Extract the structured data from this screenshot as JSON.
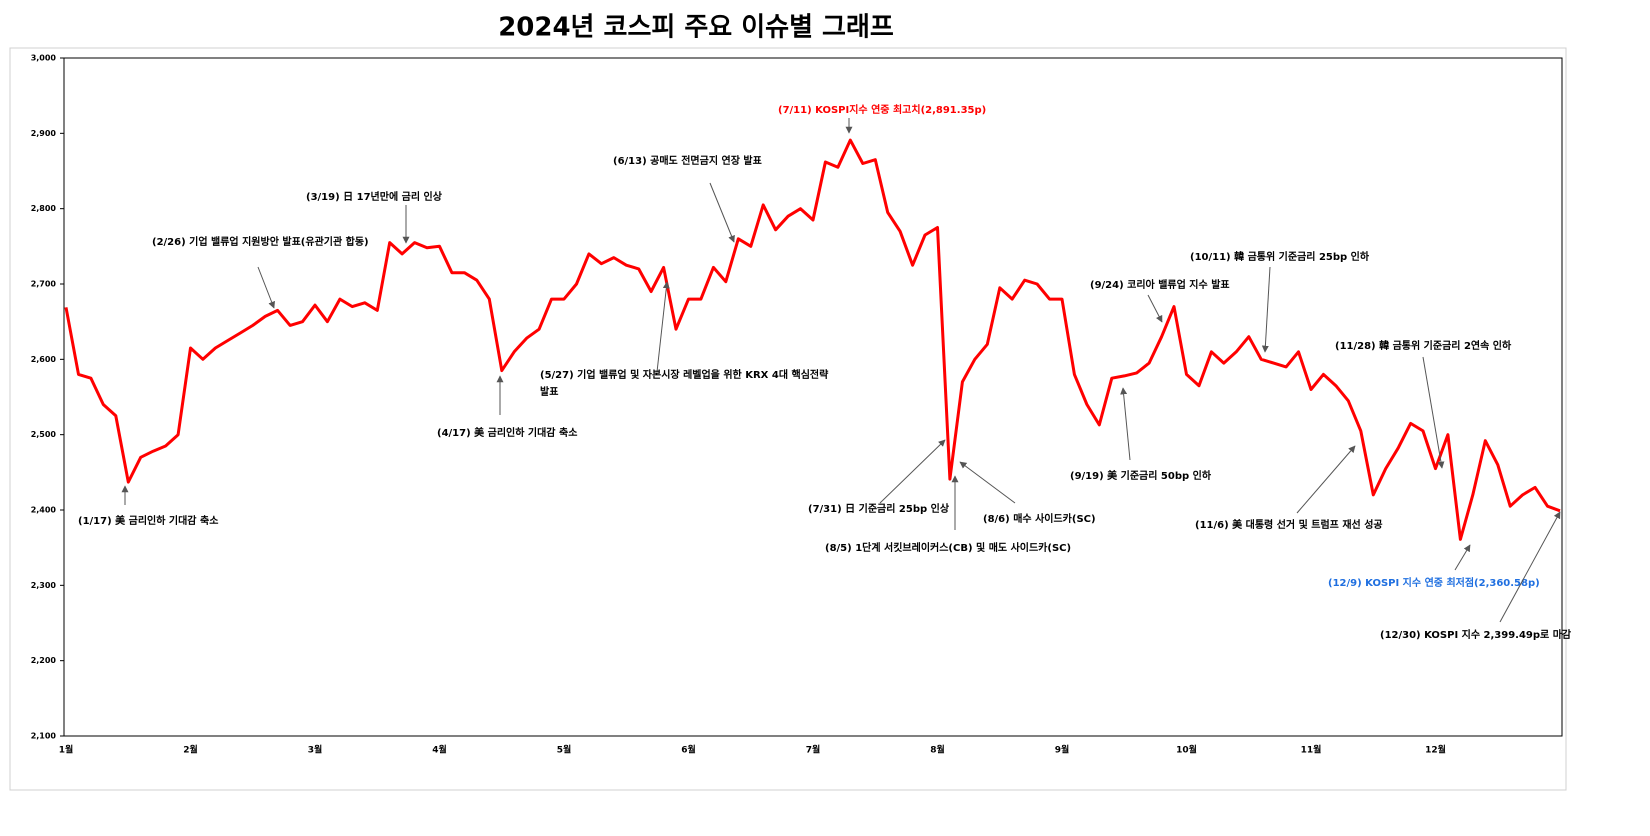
{
  "chart_data": {
    "type": "line",
    "title": "2024년  코스피 주요 이슈별 그래프",
    "categories": [
      "1월",
      null,
      null,
      null,
      null,
      null,
      null,
      null,
      null,
      null,
      "2월",
      null,
      null,
      null,
      null,
      null,
      null,
      null,
      null,
      null,
      "3월",
      null,
      null,
      null,
      null,
      null,
      null,
      null,
      null,
      null,
      "4월",
      null,
      null,
      null,
      null,
      null,
      null,
      null,
      null,
      null,
      "5월",
      null,
      null,
      null,
      null,
      null,
      null,
      null,
      null,
      null,
      "6월",
      null,
      null,
      null,
      null,
      null,
      null,
      null,
      null,
      null,
      "7월",
      null,
      null,
      null,
      null,
      null,
      null,
      null,
      null,
      null,
      "8월",
      null,
      null,
      null,
      null,
      null,
      null,
      null,
      null,
      null,
      "9월",
      null,
      null,
      null,
      null,
      null,
      null,
      null,
      null,
      null,
      "10월",
      null,
      null,
      null,
      null,
      null,
      null,
      null,
      null,
      null,
      "11월",
      null,
      null,
      null,
      null,
      null,
      null,
      null,
      null,
      null,
      "12월",
      null,
      null,
      null,
      null,
      null,
      null,
      null,
      null,
      null,
      null
    ],
    "series": [
      {
        "name": "KOSPI",
        "color": "#ff0000",
        "values": [
          2669,
          2580,
          2575,
          2540,
          2525,
          2437,
          2470,
          2478,
          2485,
          2500,
          2615,
          2600,
          2615,
          2625,
          2635,
          2645,
          2657,
          2665,
          2645,
          2650,
          2672,
          2650,
          2680,
          2670,
          2675,
          2665,
          2755,
          2740,
          2755,
          2748,
          2750,
          2715,
          2715,
          2705,
          2680,
          2585,
          2610,
          2628,
          2640,
          2680,
          2680,
          2700,
          2740,
          2727,
          2735,
          2725,
          2720,
          2690,
          2722,
          2640,
          2680,
          2680,
          2722,
          2703,
          2760,
          2750,
          2805,
          2772,
          2790,
          2800,
          2785,
          2862,
          2855,
          2891,
          2860,
          2865,
          2795,
          2770,
          2725,
          2765,
          2775,
          2441,
          2570,
          2600,
          2620,
          2695,
          2680,
          2705,
          2700,
          2680,
          2680,
          2580,
          2540,
          2513,
          2575,
          2578,
          2582,
          2595,
          2630,
          2670,
          2580,
          2565,
          2610,
          2595,
          2610,
          2630,
          2600,
          2595,
          2590,
          2610,
          2560,
          2580,
          2565,
          2545,
          2505,
          2420,
          2455,
          2482,
          2515,
          2505,
          2455,
          2500,
          2361,
          2420,
          2492,
          2460,
          2405,
          2420,
          2430,
          2405,
          2399
        ]
      }
    ],
    "ylim": [
      2100,
      3000
    ],
    "yticks": [
      {
        "value": 2100,
        "label": "2,100"
      },
      {
        "value": 2200,
        "label": "2,200"
      },
      {
        "value": 2300,
        "label": "2,300"
      },
      {
        "value": 2400,
        "label": "2,400"
      },
      {
        "value": 2500,
        "label": "2,500"
      },
      {
        "value": 2600,
        "label": "2,600"
      },
      {
        "value": 2700,
        "label": "2,700"
      },
      {
        "value": 2800,
        "label": "2,800"
      },
      {
        "value": 2900,
        "label": "2,900"
      },
      {
        "value": 3000,
        "label": "3,000"
      }
    ],
    "grid": false,
    "annotations": [
      {
        "text": [
          "(1/17) 美 금리인하 기대감 축소"
        ],
        "color": "#000000"
      },
      {
        "text": [
          "(2/26) 기업 밸류업 지원방안 발표(유관기관 합동)"
        ],
        "color": "#000000"
      },
      {
        "text": [
          "(3/19) 日 17년만에 금리 인상"
        ],
        "color": "#000000"
      },
      {
        "text": [
          "(4/17) 美 금리인하 기대감 축소"
        ],
        "color": "#000000"
      },
      {
        "text": [
          "(5/27) 기업 밸류업 및 자본시장 레벨업을 위한  KRX 4대 핵심전략",
          "발표"
        ],
        "color": "#000000"
      },
      {
        "text": [
          "(6/13) 공매도 전면금지 연장 발표"
        ],
        "color": "#000000"
      },
      {
        "text": [
          "(7/11) KOSPI지수 연중 최고치(2,891.35p)"
        ],
        "color": "#ff0000"
      },
      {
        "text": [
          "(7/31) 日 기준금리  25bp 인상"
        ],
        "color": "#000000"
      },
      {
        "text": [
          "(8/5) 1단계 서킷브레이커스(CB) 및 매도 사이드카(SC)"
        ],
        "color": "#000000"
      },
      {
        "text": [
          "(8/6) 매수 사이드카(SC)"
        ],
        "color": "#000000"
      },
      {
        "text": [
          "(9/24) 코리아 밸류업 지수 발표"
        ],
        "color": "#000000"
      },
      {
        "text": [
          "(9/19) 美 기준금리  50bp 인하"
        ],
        "color": "#000000"
      },
      {
        "text": [
          "(10/11) 韓 금통위 기준금리 25bp 인하"
        ],
        "color": "#000000"
      },
      {
        "text": [
          "(11/28) 韓 금통위 기준금리 2연속 인하"
        ],
        "color": "#000000"
      },
      {
        "text": [
          "(11/6) 美 대통령 선거 및 트럼프 재선 성공"
        ],
        "color": "#000000"
      },
      {
        "text": [
          "(12/9) KOSPI 지수 연중 최저점(2,360.58p)"
        ],
        "color": "#1f6fe0"
      },
      {
        "text": [
          "(12/30) KOSPI 지수 2,399.49p로 마감"
        ],
        "color": "#000000"
      }
    ]
  }
}
